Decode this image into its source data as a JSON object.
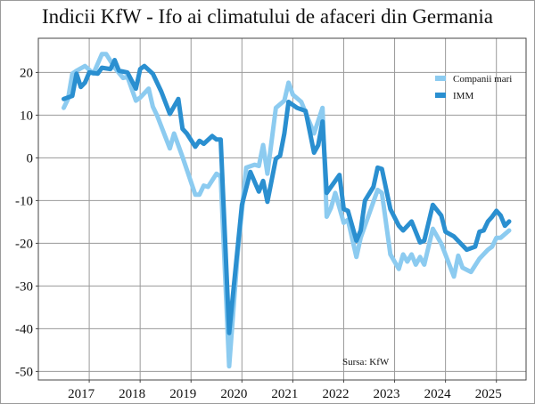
{
  "chart_data": {
    "type": "line",
    "title": "Indicii KfW - Ifo ai climatului de afaceri din Germania",
    "xlabel": "",
    "ylabel": "",
    "xlim": [
      "2016-01",
      "2025-08"
    ],
    "ylim": [
      -52,
      28
    ],
    "x_ticks": [
      "2017",
      "2018",
      "2019",
      "2020",
      "2021",
      "2022",
      "2023",
      "2024",
      "2025"
    ],
    "y_ticks": [
      20,
      10,
      0,
      -10,
      -20,
      -30,
      -40,
      -50
    ],
    "y_tick_labels": [
      "20",
      "10",
      "0",
      "-10",
      "-20",
      "-30",
      "-40",
      "-50"
    ],
    "grid": true,
    "legend": "top-right",
    "source_note": "Sursa: KfW",
    "series": [
      {
        "name": "Companii mari",
        "color": "#8ccbf0",
        "points": [
          [
            "2016-07",
            11.7
          ],
          [
            "2016-08",
            13.8
          ],
          [
            "2016-09",
            19.7
          ],
          [
            "2016-10",
            20.4
          ],
          [
            "2016-12",
            21.5
          ],
          [
            "2017-02",
            19.7
          ],
          [
            "2017-04",
            24.3
          ],
          [
            "2017-05",
            24.3
          ],
          [
            "2017-07",
            21.1
          ],
          [
            "2017-09",
            18.7
          ],
          [
            "2017-10",
            19
          ],
          [
            "2017-12",
            13.4
          ],
          [
            "2018-01",
            14.1
          ],
          [
            "2018-03",
            16.2
          ],
          [
            "2018-04",
            12
          ],
          [
            "2018-05",
            9.9
          ],
          [
            "2018-08",
            2.2
          ],
          [
            "2018-09",
            5.7
          ],
          [
            "2018-11",
            0.2
          ],
          [
            "2019-02",
            -8.6
          ],
          [
            "2019-03",
            -8.6
          ],
          [
            "2019-04",
            -6.5
          ],
          [
            "2019-05",
            -6.8
          ],
          [
            "2019-07",
            -3.7
          ],
          [
            "2019-08",
            -4.4
          ],
          [
            "2019-10",
            -48.8
          ],
          [
            "2019-12",
            -22.2
          ],
          [
            "2020-02",
            -2.3
          ],
          [
            "2020-04",
            -1.6
          ],
          [
            "2020-05",
            -1.9
          ],
          [
            "2020-06",
            3
          ],
          [
            "2020-07",
            -3.7
          ],
          [
            "2020-09",
            11.7
          ],
          [
            "2020-11",
            13.4
          ],
          [
            "2020-12",
            17.6
          ],
          [
            "2021-01",
            14.8
          ],
          [
            "2021-03",
            13.1
          ],
          [
            "2021-06",
            5.7
          ],
          [
            "2021-08",
            11.7
          ],
          [
            "2021-09",
            -13.8
          ],
          [
            "2021-10",
            -11.7
          ],
          [
            "2021-11",
            -8.2
          ],
          [
            "2022-01",
            -15.2
          ],
          [
            "2022-02",
            -14.5
          ],
          [
            "2022-04",
            -23.2
          ],
          [
            "2022-05",
            -18.7
          ],
          [
            "2022-07",
            -13.1
          ],
          [
            "2022-09",
            -7.5
          ],
          [
            "2022-10",
            -8.2
          ],
          [
            "2022-12",
            -22.6
          ],
          [
            "2023-02",
            -26
          ],
          [
            "2023-03",
            -22.6
          ],
          [
            "2023-04",
            -24.3
          ],
          [
            "2023-05",
            -22.6
          ],
          [
            "2023-06",
            -25
          ],
          [
            "2023-07",
            -23.2
          ],
          [
            "2023-08",
            -25
          ],
          [
            "2023-10",
            -16.6
          ],
          [
            "2023-12",
            -20.1
          ],
          [
            "2024-03",
            -27.8
          ],
          [
            "2024-04",
            -22.9
          ],
          [
            "2024-05",
            -25.7
          ],
          [
            "2024-07",
            -26.7
          ],
          [
            "2024-09",
            -23.6
          ],
          [
            "2024-11",
            -21.5
          ],
          [
            "2024-12",
            -20.8
          ],
          [
            "2025-01",
            -18.7
          ],
          [
            "2025-02",
            -18.7
          ],
          [
            "2025-04",
            -17
          ]
        ]
      },
      {
        "name": "IMM",
        "color": "#2a8fd0",
        "points": [
          [
            "2016-07",
            13.8
          ],
          [
            "2016-09",
            14.5
          ],
          [
            "2016-10",
            19.7
          ],
          [
            "2016-11",
            16.6
          ],
          [
            "2016-12",
            17.6
          ],
          [
            "2017-01",
            20
          ],
          [
            "2017-03",
            19.7
          ],
          [
            "2017-04",
            21.1
          ],
          [
            "2017-06",
            20.8
          ],
          [
            "2017-07",
            22.9
          ],
          [
            "2017-08",
            20.4
          ],
          [
            "2017-10",
            20
          ],
          [
            "2017-12",
            16.2
          ],
          [
            "2018-01",
            20.8
          ],
          [
            "2018-02",
            21.5
          ],
          [
            "2018-04",
            19.7
          ],
          [
            "2018-06",
            15.5
          ],
          [
            "2018-08",
            10.3
          ],
          [
            "2018-10",
            13.8
          ],
          [
            "2018-11",
            6.8
          ],
          [
            "2018-12",
            5.7
          ],
          [
            "2019-02",
            2.6
          ],
          [
            "2019-03",
            4
          ],
          [
            "2019-04",
            3.3
          ],
          [
            "2019-06",
            5.1
          ],
          [
            "2019-07",
            4.3
          ],
          [
            "2019-08",
            4.3
          ],
          [
            "2019-10",
            -41
          ],
          [
            "2020-01",
            -11
          ],
          [
            "2020-03",
            -3.3
          ],
          [
            "2020-05",
            -7.9
          ],
          [
            "2020-06",
            -5.4
          ],
          [
            "2020-07",
            -10.3
          ],
          [
            "2020-09",
            -0.2
          ],
          [
            "2020-10",
            0.5
          ],
          [
            "2020-11",
            5.7
          ],
          [
            "2020-12",
            13.1
          ],
          [
            "2021-02",
            11.7
          ],
          [
            "2021-04",
            11
          ],
          [
            "2021-06",
            1.2
          ],
          [
            "2021-07",
            3
          ],
          [
            "2021-08",
            8.5
          ],
          [
            "2021-09",
            -8.2
          ],
          [
            "2021-12",
            -4
          ],
          [
            "2022-01",
            -12
          ],
          [
            "2022-02",
            -12.4
          ],
          [
            "2022-04",
            -19.4
          ],
          [
            "2022-05",
            -17
          ],
          [
            "2022-06",
            -10
          ],
          [
            "2022-08",
            -6.8
          ],
          [
            "2022-09",
            -2.3
          ],
          [
            "2022-10",
            -2.6
          ],
          [
            "2022-12",
            -12
          ],
          [
            "2023-02",
            -15.9
          ],
          [
            "2023-03",
            -17
          ],
          [
            "2023-05",
            -14.9
          ],
          [
            "2023-07",
            -19.8
          ],
          [
            "2023-08",
            -19.4
          ],
          [
            "2023-10",
            -11
          ],
          [
            "2023-12",
            -13.5
          ],
          [
            "2024-01",
            -17.3
          ],
          [
            "2024-03",
            -18.4
          ],
          [
            "2024-06",
            -21.5
          ],
          [
            "2024-08",
            -20.8
          ],
          [
            "2024-09",
            -17.3
          ],
          [
            "2024-10",
            -17
          ],
          [
            "2024-11",
            -14.9
          ],
          [
            "2024-12",
            -13.8
          ],
          [
            "2025-01",
            -12.4
          ],
          [
            "2025-02",
            -13.5
          ],
          [
            "2025-03",
            -15.9
          ],
          [
            "2025-04",
            -14.9
          ]
        ]
      }
    ]
  }
}
